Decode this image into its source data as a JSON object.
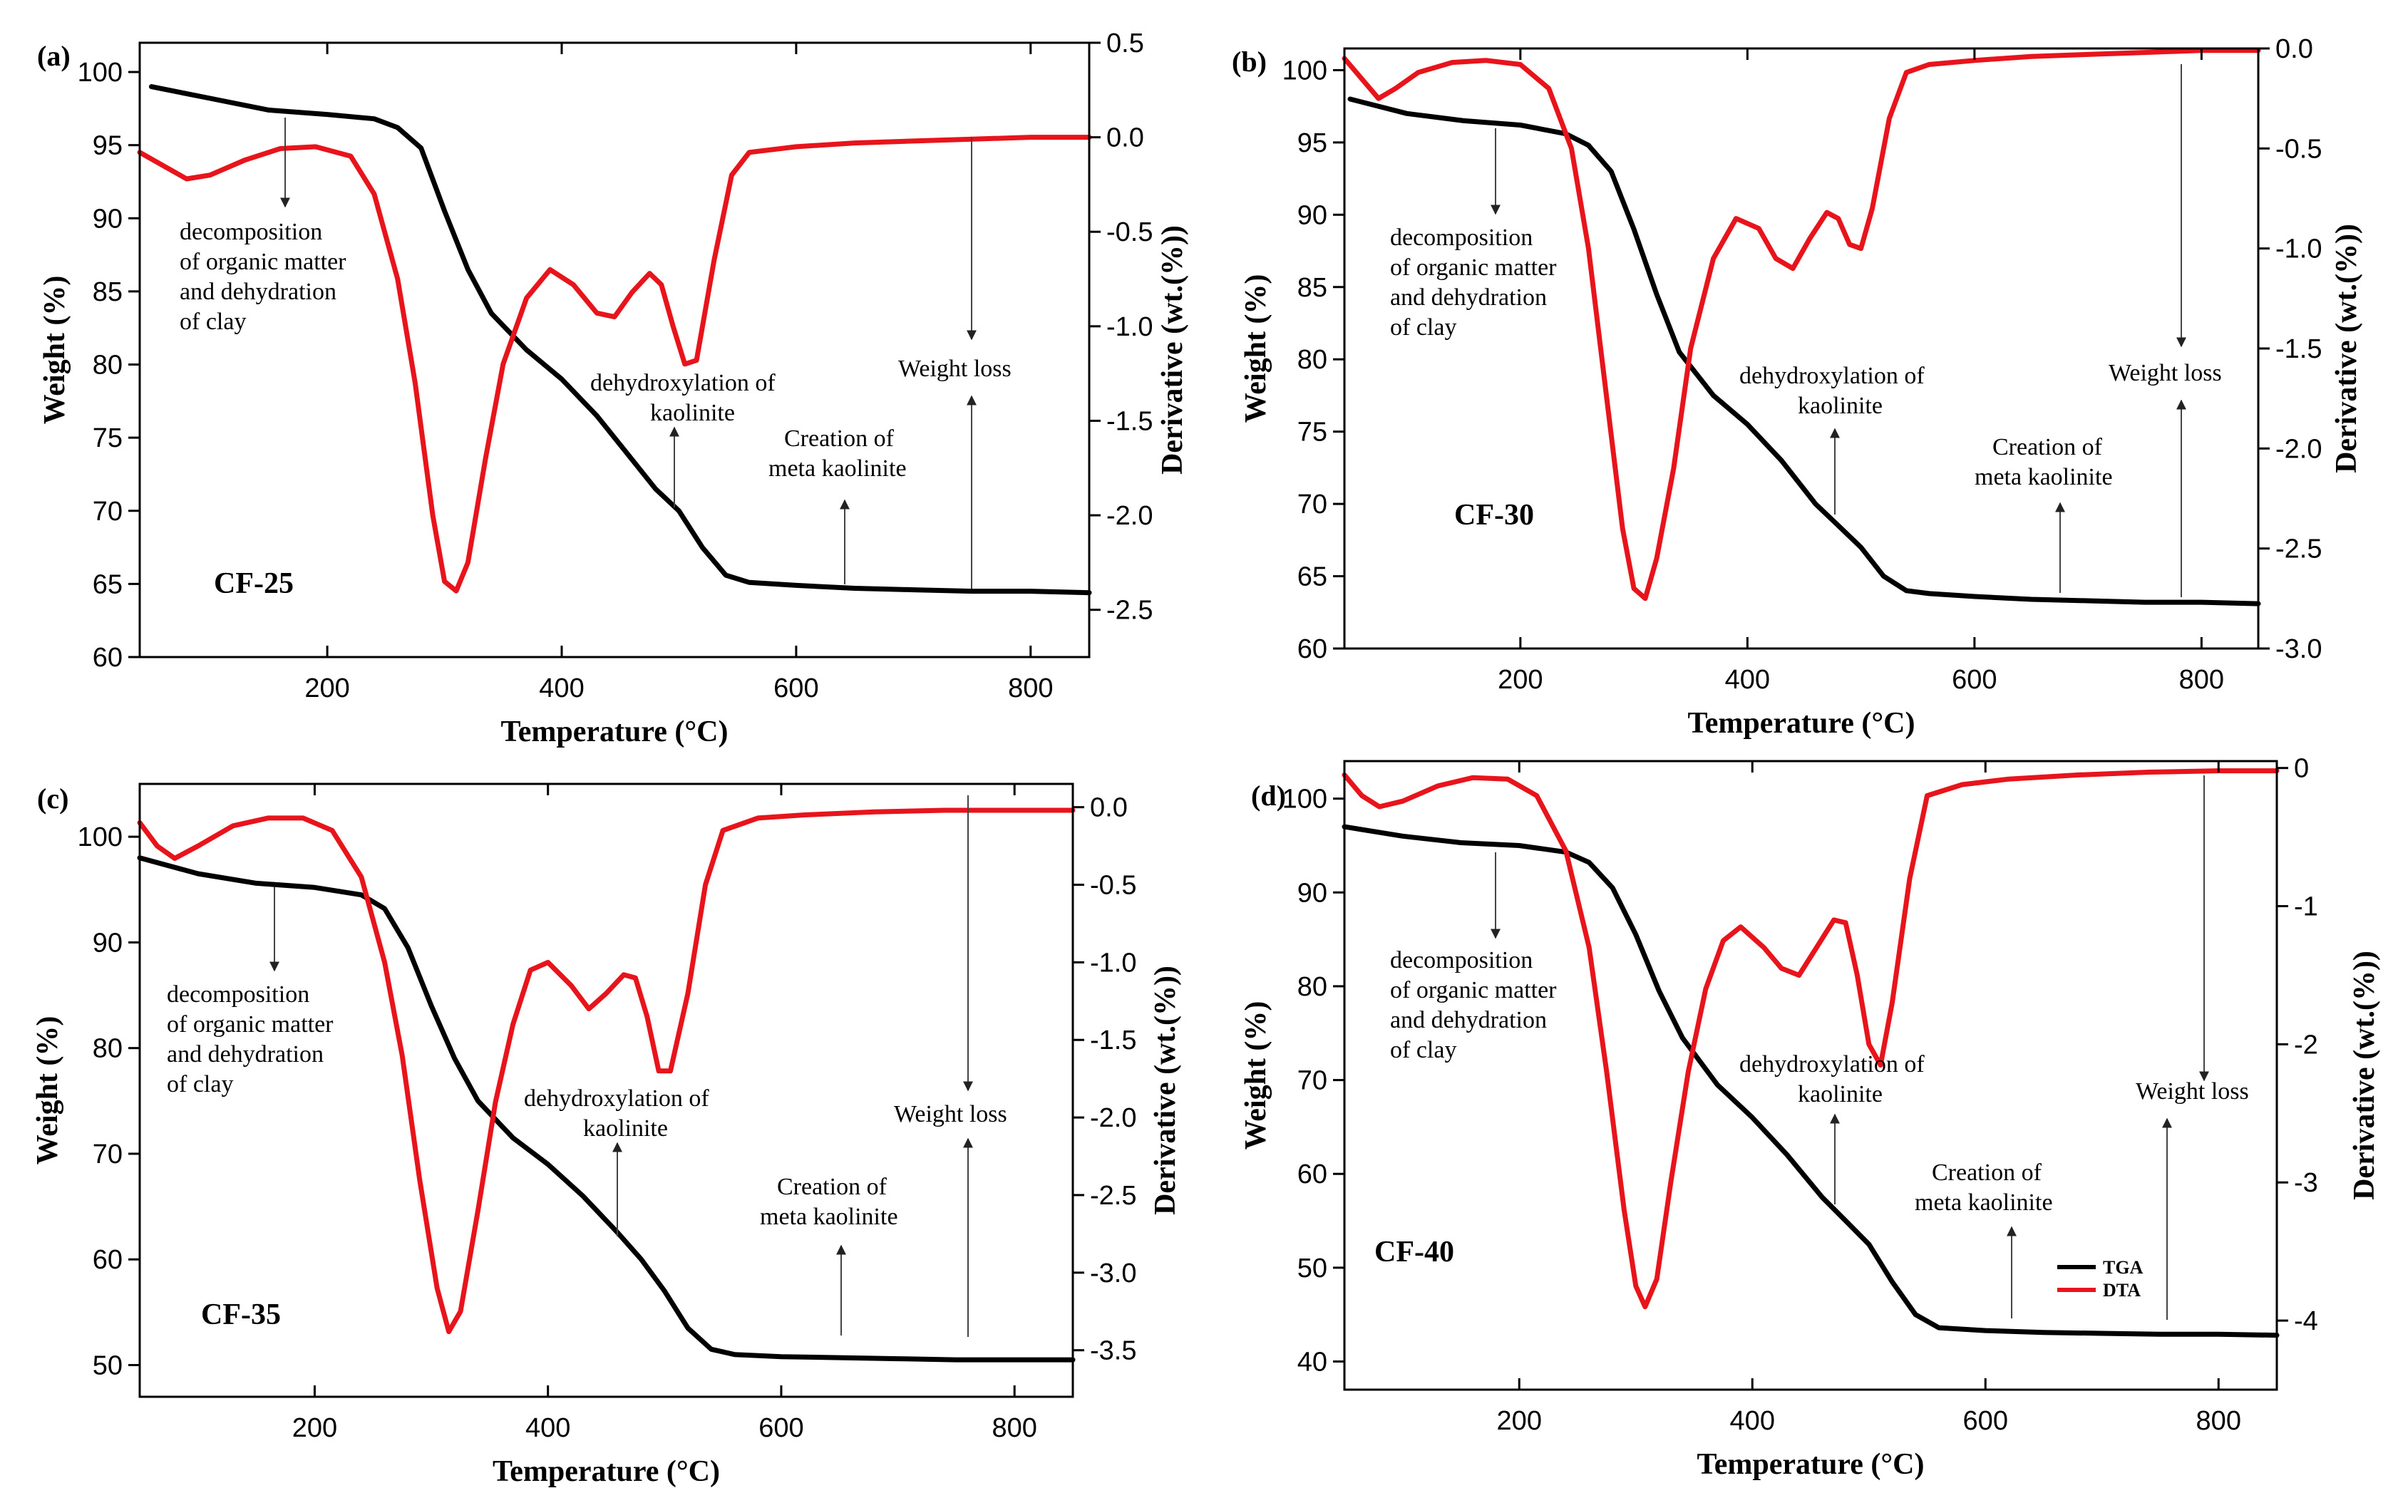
{
  "figure": {
    "legend": [
      {
        "label": "TGA",
        "color": "#000000"
      },
      {
        "label": "DTA",
        "color": "#e8141b"
      }
    ]
  },
  "chart_data": [
    {
      "type": "line",
      "panel": "(a)",
      "sample": "CF-25",
      "xlabel": "Temperature (°C)",
      "ylabel": "Weight (%)",
      "y2label": "Derivative (wt.(%))",
      "xlim": [
        40,
        850
      ],
      "ylim": [
        60,
        102
      ],
      "y2lim": [
        -2.75,
        0.5
      ],
      "xticks": [
        "200",
        "400",
        "600",
        "800"
      ],
      "xtick_values": [
        200,
        400,
        600,
        800
      ],
      "yticks": [
        "60",
        "65",
        "70",
        "75",
        "80",
        "85",
        "90",
        "95",
        "100"
      ],
      "ytick_values": [
        60,
        65,
        70,
        75,
        80,
        85,
        90,
        95,
        100
      ],
      "y2ticks": [
        "-2.5",
        "-2.0",
        "-1.5",
        "-1.0",
        "-0.5",
        "0.0",
        "0.5"
      ],
      "y2tick_values": [
        -2.5,
        -2.0,
        -1.5,
        -1.0,
        -0.5,
        0.0,
        0.5
      ],
      "series": [
        {
          "name": "TGA",
          "axis": "left",
          "color": "#000000",
          "x": [
            50,
            100,
            150,
            200,
            240,
            260,
            280,
            300,
            320,
            340,
            370,
            400,
            430,
            460,
            480,
            500,
            520,
            540,
            560,
            600,
            650,
            700,
            750,
            800,
            850
          ],
          "y": [
            99,
            98.2,
            97.4,
            97.1,
            96.8,
            96.2,
            94.8,
            90.5,
            86.5,
            83.5,
            81,
            79,
            76.5,
            73.5,
            71.5,
            70,
            67.5,
            65.6,
            65.1,
            64.9,
            64.7,
            64.6,
            64.5,
            64.5,
            64.4
          ]
        },
        {
          "name": "DTA",
          "axis": "right",
          "color": "#e8141b",
          "x": [
            40,
            60,
            80,
            100,
            130,
            160,
            190,
            220,
            240,
            260,
            275,
            290,
            300,
            310,
            320,
            335,
            350,
            370,
            390,
            410,
            430,
            445,
            460,
            475,
            485,
            495,
            505,
            515,
            530,
            545,
            560,
            600,
            650,
            700,
            750,
            800,
            850
          ],
          "y": [
            -0.08,
            -0.15,
            -0.22,
            -0.2,
            -0.12,
            -0.06,
            -0.05,
            -0.1,
            -0.3,
            -0.75,
            -1.3,
            -2.0,
            -2.35,
            -2.4,
            -2.25,
            -1.7,
            -1.2,
            -0.85,
            -0.7,
            -0.78,
            -0.93,
            -0.95,
            -0.82,
            -0.72,
            -0.78,
            -1.0,
            -1.2,
            -1.18,
            -0.65,
            -0.2,
            -0.08,
            -0.05,
            -0.03,
            -0.02,
            -0.01,
            0.0,
            0.0
          ]
        }
      ],
      "annotations": {
        "decomposition": [
          "decomposition",
          "of organic matter",
          "and dehydration",
          "of clay"
        ],
        "dehydroxylation": [
          "dehydroxylation of",
          "kaolinite"
        ],
        "creation": [
          "Creation of",
          "meta kaolinite"
        ],
        "weight_loss": [
          "Weight loss"
        ]
      }
    },
    {
      "type": "line",
      "panel": "(b)",
      "sample": "CF-30",
      "xlabel": "Temperature (°C)",
      "ylabel": "Weight (%)",
      "y2label": "Derivative (wt.(%))",
      "xlim": [
        45,
        850
      ],
      "ylim": [
        60,
        101.5
      ],
      "y2lim": [
        -3.0,
        0.0
      ],
      "xticks": [
        "200",
        "400",
        "600",
        "800"
      ],
      "xtick_values": [
        200,
        400,
        600,
        800
      ],
      "yticks": [
        "60",
        "65",
        "70",
        "75",
        "80",
        "85",
        "90",
        "95",
        "100"
      ],
      "ytick_values": [
        60,
        65,
        70,
        75,
        80,
        85,
        90,
        95,
        100
      ],
      "y2ticks": [
        "-3.0",
        "-2.5",
        "-2.0",
        "-1.5",
        "-1.0",
        "-0.5",
        "0.0"
      ],
      "y2tick_values": [
        -3.0,
        -2.5,
        -2.0,
        -1.5,
        -1.0,
        -0.5,
        0.0
      ],
      "series": [
        {
          "name": "TGA",
          "axis": "left",
          "color": "#000000",
          "x": [
            50,
            100,
            150,
            200,
            240,
            260,
            280,
            300,
            320,
            340,
            370,
            400,
            430,
            460,
            480,
            500,
            520,
            540,
            560,
            600,
            650,
            700,
            750,
            800,
            850
          ],
          "y": [
            98,
            97,
            96.5,
            96.2,
            95.6,
            94.8,
            93,
            89,
            84.5,
            80.5,
            77.5,
            75.5,
            73,
            70,
            68.5,
            67,
            65,
            64,
            63.8,
            63.6,
            63.4,
            63.3,
            63.2,
            63.2,
            63.1
          ]
        },
        {
          "name": "DTA",
          "axis": "right",
          "color": "#e8141b",
          "x": [
            45,
            60,
            75,
            90,
            110,
            140,
            170,
            200,
            225,
            245,
            260,
            275,
            290,
            300,
            310,
            320,
            335,
            350,
            370,
            390,
            410,
            425,
            440,
            455,
            470,
            480,
            490,
            500,
            510,
            525,
            540,
            560,
            600,
            650,
            700,
            750,
            800,
            850
          ],
          "y": [
            -0.05,
            -0.15,
            -0.25,
            -0.2,
            -0.12,
            -0.07,
            -0.06,
            -0.08,
            -0.2,
            -0.5,
            -1.0,
            -1.7,
            -2.4,
            -2.7,
            -2.75,
            -2.55,
            -2.1,
            -1.5,
            -1.05,
            -0.85,
            -0.9,
            -1.05,
            -1.1,
            -0.95,
            -0.82,
            -0.85,
            -0.98,
            -1.0,
            -0.8,
            -0.35,
            -0.12,
            -0.08,
            -0.06,
            -0.04,
            -0.03,
            -0.02,
            -0.01,
            -0.01
          ]
        }
      ],
      "annotations": {
        "decomposition": [
          "decomposition",
          "of organic matter",
          "and dehydration",
          "of clay"
        ],
        "dehydroxylation": [
          "dehydroxylation of",
          "kaolinite"
        ],
        "creation": [
          "Creation of",
          "meta kaolinite"
        ],
        "weight_loss": [
          "Weight loss"
        ]
      }
    },
    {
      "type": "line",
      "panel": "(c)",
      "sample": "CF-35",
      "xlabel": "Temperature (°C)",
      "ylabel": "Weight (%)",
      "y2label": "Derivative (wt.(%))",
      "xlim": [
        50,
        850
      ],
      "ylim": [
        47,
        105
      ],
      "y2lim": [
        -3.8,
        0.15
      ],
      "xticks": [
        "200",
        "400",
        "600",
        "800"
      ],
      "xtick_values": [
        200,
        400,
        600,
        800
      ],
      "yticks": [
        "50",
        "60",
        "70",
        "80",
        "90",
        "100"
      ],
      "ytick_values": [
        50,
        60,
        70,
        80,
        90,
        100
      ],
      "y2ticks": [
        "-3.5",
        "-3.0",
        "-2.5",
        "-2.0",
        "-1.5",
        "-1.0",
        "-0.5",
        "0.0"
      ],
      "y2tick_values": [
        -3.5,
        -3.0,
        -2.5,
        -2.0,
        -1.5,
        -1.0,
        -0.5,
        0.0
      ],
      "series": [
        {
          "name": "TGA",
          "axis": "left",
          "color": "#000000",
          "x": [
            50,
            100,
            150,
            200,
            240,
            260,
            280,
            300,
            320,
            340,
            370,
            400,
            430,
            460,
            480,
            500,
            520,
            540,
            560,
            600,
            650,
            700,
            750,
            800,
            850
          ],
          "y": [
            98,
            96.5,
            95.6,
            95.2,
            94.5,
            93.2,
            89.5,
            84,
            79,
            75,
            71.5,
            69,
            66,
            62.5,
            60,
            57,
            53.5,
            51.5,
            51,
            50.8,
            50.7,
            50.6,
            50.5,
            50.5,
            50.5
          ]
        },
        {
          "name": "DTA",
          "axis": "right",
          "color": "#e8141b",
          "x": [
            50,
            65,
            80,
            100,
            130,
            160,
            190,
            215,
            240,
            260,
            275,
            290,
            305,
            315,
            325,
            340,
            355,
            370,
            385,
            400,
            420,
            435,
            450,
            465,
            475,
            485,
            495,
            505,
            520,
            535,
            550,
            580,
            620,
            680,
            740,
            800,
            850
          ],
          "y": [
            -0.1,
            -0.25,
            -0.33,
            -0.25,
            -0.12,
            -0.07,
            -0.07,
            -0.15,
            -0.45,
            -1.0,
            -1.6,
            -2.4,
            -3.1,
            -3.38,
            -3.25,
            -2.6,
            -1.9,
            -1.4,
            -1.05,
            -1.0,
            -1.15,
            -1.3,
            -1.2,
            -1.08,
            -1.1,
            -1.35,
            -1.7,
            -1.7,
            -1.2,
            -0.5,
            -0.15,
            -0.07,
            -0.05,
            -0.03,
            -0.02,
            -0.02,
            -0.02
          ]
        }
      ],
      "annotations": {
        "decomposition": [
          "decomposition",
          "of organic matter",
          "and dehydration",
          "of clay"
        ],
        "dehydroxylation": [
          "dehydroxylation of",
          "kaolinite"
        ],
        "creation": [
          "Creation of",
          "meta kaolinite"
        ],
        "weight_loss": [
          "Weight loss"
        ]
      }
    },
    {
      "type": "line",
      "panel": "(d)",
      "sample": "CF-40",
      "xlabel": "Temperature (°C)",
      "ylabel": "Weight (%)",
      "y2label": "Derivative (wt.(%))",
      "xlim": [
        50,
        850
      ],
      "ylim": [
        37,
        104
      ],
      "y2lim": [
        -4.5,
        0.05
      ],
      "xticks": [
        "200",
        "400",
        "600",
        "800"
      ],
      "xtick_values": [
        200,
        400,
        600,
        800
      ],
      "yticks": [
        "40",
        "50",
        "60",
        "70",
        "80",
        "90",
        "100"
      ],
      "ytick_values": [
        40,
        50,
        60,
        70,
        80,
        90,
        100
      ],
      "y2ticks": [
        "-4",
        "-3",
        "-2",
        "-1",
        "0"
      ],
      "y2tick_values": [
        -4,
        -3,
        -2,
        -1,
        0
      ],
      "series": [
        {
          "name": "TGA",
          "axis": "left",
          "color": "#000000",
          "x": [
            50,
            100,
            150,
            200,
            240,
            260,
            280,
            300,
            320,
            340,
            370,
            400,
            430,
            460,
            480,
            500,
            520,
            540,
            560,
            600,
            650,
            700,
            750,
            800,
            850
          ],
          "y": [
            97,
            96,
            95.3,
            95,
            94.3,
            93.2,
            90.5,
            85.5,
            79.5,
            74.5,
            69.5,
            66,
            62,
            57.5,
            55,
            52.5,
            48.5,
            45,
            43.6,
            43.3,
            43.1,
            43,
            42.9,
            42.9,
            42.8
          ]
        },
        {
          "name": "DTA",
          "axis": "right",
          "color": "#e8141b",
          "x": [
            50,
            65,
            80,
            100,
            130,
            160,
            190,
            215,
            240,
            260,
            275,
            290,
            300,
            308,
            318,
            330,
            345,
            360,
            375,
            390,
            410,
            425,
            440,
            455,
            470,
            480,
            490,
            500,
            510,
            520,
            535,
            550,
            580,
            620,
            680,
            740,
            800,
            850
          ],
          "y": [
            -0.05,
            -0.2,
            -0.28,
            -0.24,
            -0.13,
            -0.07,
            -0.08,
            -0.2,
            -0.6,
            -1.3,
            -2.2,
            -3.2,
            -3.75,
            -3.9,
            -3.7,
            -3.0,
            -2.2,
            -1.6,
            -1.25,
            -1.15,
            -1.3,
            -1.45,
            -1.5,
            -1.3,
            -1.1,
            -1.12,
            -1.5,
            -2.0,
            -2.15,
            -1.7,
            -0.8,
            -0.2,
            -0.12,
            -0.08,
            -0.05,
            -0.03,
            -0.02,
            -0.02
          ]
        }
      ],
      "annotations": {
        "decomposition": [
          "decomposition",
          "of organic matter",
          "and dehydration",
          "of clay"
        ],
        "dehydroxylation": [
          "dehydroxylation of",
          "kaolinite"
        ],
        "creation": [
          "Creation of",
          "meta kaolinite"
        ],
        "weight_loss": [
          "Weight loss"
        ]
      }
    }
  ]
}
